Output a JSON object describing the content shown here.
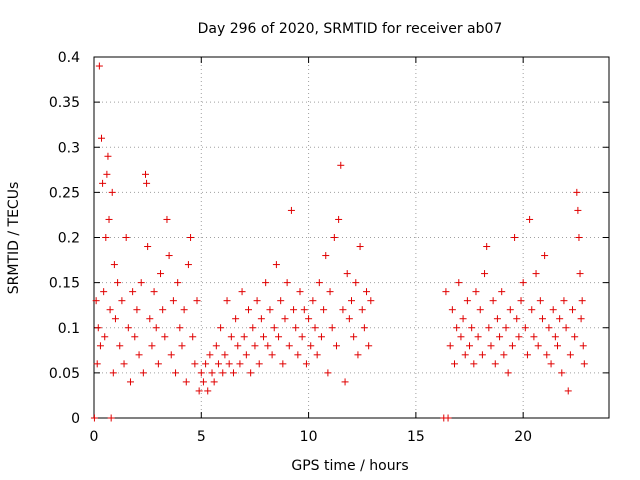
{
  "chart_data": {
    "type": "scatter",
    "title": "Day 296 of 2020, SRMTID for receiver ab07",
    "xlabel": "GPS time / hours",
    "ylabel": "SRMTID / TECUs",
    "xlim": [
      0,
      24
    ],
    "ylim": [
      0,
      0.4
    ],
    "xticks": [
      0,
      5,
      10,
      15,
      20
    ],
    "yticks": [
      0,
      0.05,
      0.1,
      0.15,
      0.2,
      0.25,
      0.3,
      0.35,
      0.4
    ],
    "xtick_labels": [
      "0",
      "5",
      "10",
      "15",
      "20"
    ],
    "ytick_labels": [
      "0",
      "0.05",
      "0.1",
      "0.15",
      "0.2",
      "0.25",
      "0.3",
      "0.35",
      "0.4"
    ],
    "grid": true,
    "marker": "+",
    "color": "#e00000",
    "series": [
      {
        "name": "SRMTID",
        "points": [
          [
            0.02,
            0.0
          ],
          [
            0.1,
            0.13
          ],
          [
            0.15,
            0.06
          ],
          [
            0.2,
            0.1
          ],
          [
            0.25,
            0.39
          ],
          [
            0.3,
            0.08
          ],
          [
            0.35,
            0.31
          ],
          [
            0.4,
            0.26
          ],
          [
            0.45,
            0.14
          ],
          [
            0.5,
            0.09
          ],
          [
            0.55,
            0.2
          ],
          [
            0.6,
            0.27
          ],
          [
            0.65,
            0.29
          ],
          [
            0.7,
            0.22
          ],
          [
            0.75,
            0.12
          ],
          [
            0.8,
            0.0
          ],
          [
            0.85,
            0.25
          ],
          [
            0.9,
            0.05
          ],
          [
            0.95,
            0.17
          ],
          [
            1.0,
            0.11
          ],
          [
            1.1,
            0.15
          ],
          [
            1.2,
            0.08
          ],
          [
            1.3,
            0.13
          ],
          [
            1.4,
            0.06
          ],
          [
            1.5,
            0.2
          ],
          [
            1.6,
            0.1
          ],
          [
            1.7,
            0.04
          ],
          [
            1.8,
            0.14
          ],
          [
            1.9,
            0.09
          ],
          [
            2.0,
            0.12
          ],
          [
            2.1,
            0.07
          ],
          [
            2.2,
            0.15
          ],
          [
            2.3,
            0.05
          ],
          [
            2.4,
            0.27
          ],
          [
            2.45,
            0.26
          ],
          [
            2.5,
            0.19
          ],
          [
            2.6,
            0.11
          ],
          [
            2.7,
            0.08
          ],
          [
            2.8,
            0.14
          ],
          [
            2.9,
            0.1
          ],
          [
            3.0,
            0.06
          ],
          [
            3.1,
            0.16
          ],
          [
            3.2,
            0.12
          ],
          [
            3.3,
            0.09
          ],
          [
            3.4,
            0.22
          ],
          [
            3.5,
            0.18
          ],
          [
            3.6,
            0.07
          ],
          [
            3.7,
            0.13
          ],
          [
            3.8,
            0.05
          ],
          [
            3.9,
            0.15
          ],
          [
            4.0,
            0.1
          ],
          [
            4.1,
            0.08
          ],
          [
            4.2,
            0.12
          ],
          [
            4.3,
            0.04
          ],
          [
            4.4,
            0.17
          ],
          [
            4.5,
            0.2
          ],
          [
            4.6,
            0.09
          ],
          [
            4.7,
            0.06
          ],
          [
            4.8,
            0.13
          ],
          [
            4.9,
            0.03
          ],
          [
            5.0,
            0.05
          ],
          [
            5.1,
            0.04
          ],
          [
            5.2,
            0.06
          ],
          [
            5.3,
            0.03
          ],
          [
            5.4,
            0.07
          ],
          [
            5.5,
            0.05
          ],
          [
            5.6,
            0.04
          ],
          [
            5.7,
            0.08
          ],
          [
            5.8,
            0.06
          ],
          [
            5.9,
            0.1
          ],
          [
            6.0,
            0.05
          ],
          [
            6.1,
            0.07
          ],
          [
            6.2,
            0.13
          ],
          [
            6.3,
            0.06
          ],
          [
            6.4,
            0.09
          ],
          [
            6.5,
            0.05
          ],
          [
            6.6,
            0.11
          ],
          [
            6.7,
            0.08
          ],
          [
            6.8,
            0.06
          ],
          [
            6.9,
            0.14
          ],
          [
            7.0,
            0.09
          ],
          [
            7.1,
            0.07
          ],
          [
            7.2,
            0.12
          ],
          [
            7.3,
            0.05
          ],
          [
            7.4,
            0.1
          ],
          [
            7.5,
            0.08
          ],
          [
            7.6,
            0.13
          ],
          [
            7.7,
            0.06
          ],
          [
            7.8,
            0.11
          ],
          [
            7.9,
            0.09
          ],
          [
            8.0,
            0.15
          ],
          [
            8.1,
            0.08
          ],
          [
            8.2,
            0.12
          ],
          [
            8.3,
            0.07
          ],
          [
            8.4,
            0.1
          ],
          [
            8.5,
            0.17
          ],
          [
            8.6,
            0.09
          ],
          [
            8.7,
            0.13
          ],
          [
            8.8,
            0.06
          ],
          [
            8.9,
            0.11
          ],
          [
            9.0,
            0.15
          ],
          [
            9.1,
            0.08
          ],
          [
            9.2,
            0.23
          ],
          [
            9.3,
            0.12
          ],
          [
            9.4,
            0.1
          ],
          [
            9.5,
            0.07
          ],
          [
            9.6,
            0.14
          ],
          [
            9.7,
            0.09
          ],
          [
            9.8,
            0.12
          ],
          [
            9.9,
            0.06
          ],
          [
            10.0,
            0.11
          ],
          [
            10.1,
            0.08
          ],
          [
            10.2,
            0.13
          ],
          [
            10.3,
            0.1
          ],
          [
            10.4,
            0.07
          ],
          [
            10.5,
            0.15
          ],
          [
            10.6,
            0.09
          ],
          [
            10.7,
            0.12
          ],
          [
            10.8,
            0.18
          ],
          [
            10.9,
            0.05
          ],
          [
            11.0,
            0.14
          ],
          [
            11.1,
            0.1
          ],
          [
            11.2,
            0.2
          ],
          [
            11.3,
            0.08
          ],
          [
            11.4,
            0.22
          ],
          [
            11.5,
            0.28
          ],
          [
            11.6,
            0.12
          ],
          [
            11.7,
            0.04
          ],
          [
            11.8,
            0.16
          ],
          [
            11.9,
            0.11
          ],
          [
            12.0,
            0.13
          ],
          [
            12.1,
            0.09
          ],
          [
            12.2,
            0.15
          ],
          [
            12.3,
            0.07
          ],
          [
            12.4,
            0.19
          ],
          [
            12.5,
            0.12
          ],
          [
            12.6,
            0.1
          ],
          [
            12.7,
            0.14
          ],
          [
            12.8,
            0.08
          ],
          [
            12.9,
            0.13
          ],
          [
            16.3,
            0.0
          ],
          [
            16.4,
            0.14
          ],
          [
            16.5,
            0.0
          ],
          [
            16.6,
            0.08
          ],
          [
            16.7,
            0.12
          ],
          [
            16.8,
            0.06
          ],
          [
            16.9,
            0.1
          ],
          [
            17.0,
            0.15
          ],
          [
            17.1,
            0.09
          ],
          [
            17.2,
            0.11
          ],
          [
            17.3,
            0.07
          ],
          [
            17.4,
            0.13
          ],
          [
            17.5,
            0.08
          ],
          [
            17.6,
            0.1
          ],
          [
            17.7,
            0.06
          ],
          [
            17.8,
            0.14
          ],
          [
            17.9,
            0.09
          ],
          [
            18.0,
            0.12
          ],
          [
            18.1,
            0.07
          ],
          [
            18.2,
            0.16
          ],
          [
            18.3,
            0.19
          ],
          [
            18.4,
            0.1
          ],
          [
            18.5,
            0.08
          ],
          [
            18.6,
            0.13
          ],
          [
            18.7,
            0.06
          ],
          [
            18.8,
            0.11
          ],
          [
            18.9,
            0.09
          ],
          [
            19.0,
            0.14
          ],
          [
            19.1,
            0.07
          ],
          [
            19.2,
            0.1
          ],
          [
            19.3,
            0.05
          ],
          [
            19.4,
            0.12
          ],
          [
            19.5,
            0.08
          ],
          [
            19.6,
            0.2
          ],
          [
            19.7,
            0.11
          ],
          [
            19.8,
            0.09
          ],
          [
            19.9,
            0.13
          ],
          [
            20.0,
            0.15
          ],
          [
            20.1,
            0.1
          ],
          [
            20.2,
            0.07
          ],
          [
            20.3,
            0.22
          ],
          [
            20.4,
            0.12
          ],
          [
            20.5,
            0.09
          ],
          [
            20.6,
            0.16
          ],
          [
            20.7,
            0.08
          ],
          [
            20.8,
            0.13
          ],
          [
            20.9,
            0.11
          ],
          [
            21.0,
            0.18
          ],
          [
            21.1,
            0.07
          ],
          [
            21.2,
            0.1
          ],
          [
            21.3,
            0.06
          ],
          [
            21.4,
            0.12
          ],
          [
            21.5,
            0.09
          ],
          [
            21.6,
            0.08
          ],
          [
            21.7,
            0.11
          ],
          [
            21.8,
            0.05
          ],
          [
            21.9,
            0.13
          ],
          [
            22.0,
            0.1
          ],
          [
            22.1,
            0.03
          ],
          [
            22.2,
            0.07
          ],
          [
            22.3,
            0.12
          ],
          [
            22.4,
            0.09
          ],
          [
            22.5,
            0.25
          ],
          [
            22.55,
            0.23
          ],
          [
            22.6,
            0.2
          ],
          [
            22.65,
            0.16
          ],
          [
            22.7,
            0.11
          ],
          [
            22.75,
            0.13
          ],
          [
            22.8,
            0.08
          ],
          [
            22.85,
            0.06
          ]
        ]
      }
    ]
  }
}
